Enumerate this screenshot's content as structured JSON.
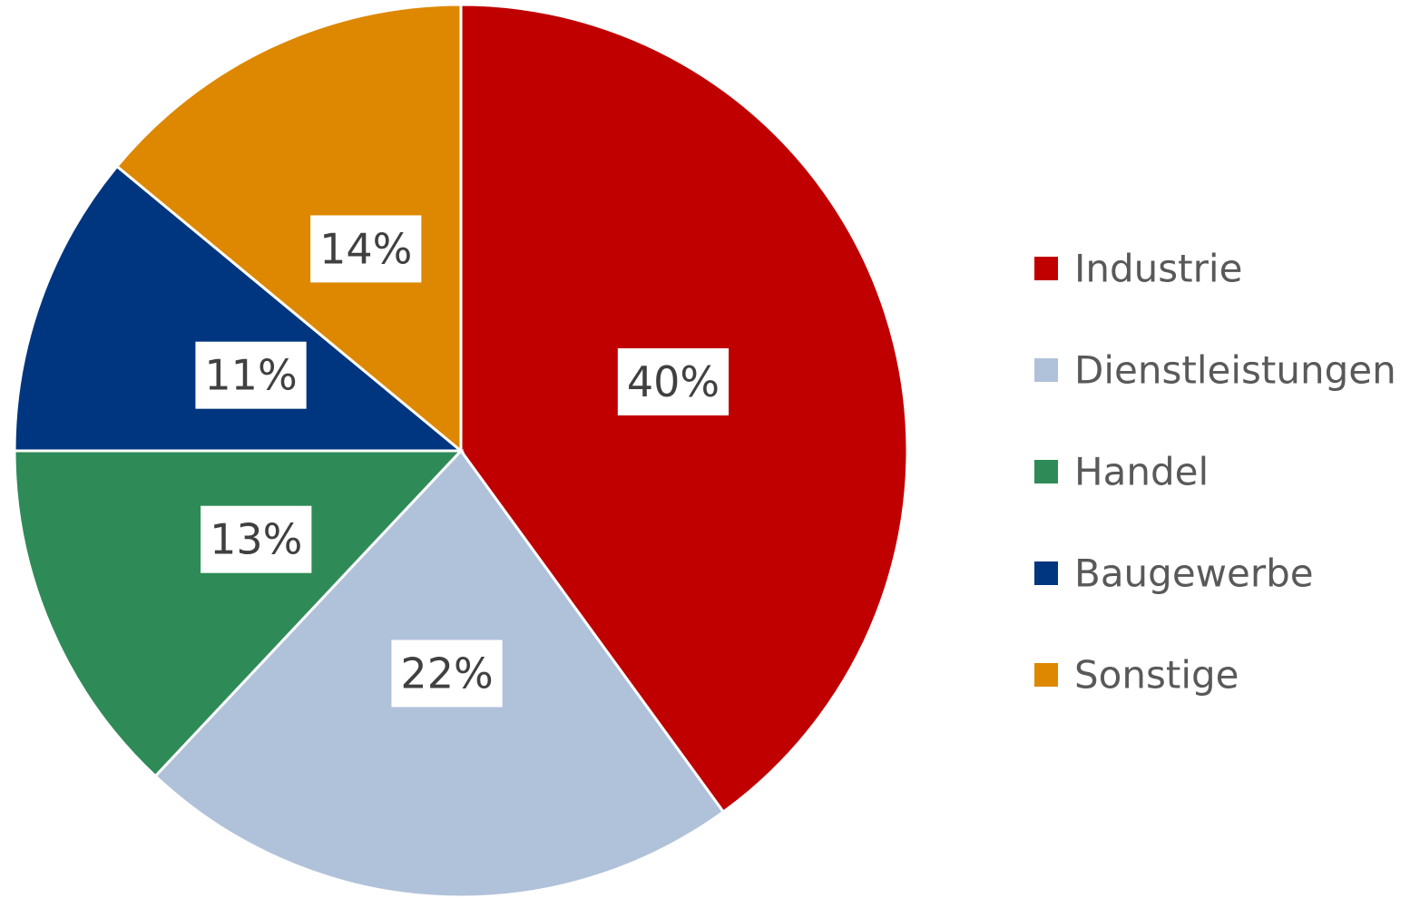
{
  "chart_data": {
    "type": "pie",
    "categories": [
      "Industrie",
      "Dienstleistungen",
      "Handel",
      "Baugewerbe",
      "Sonstige"
    ],
    "values": [
      40,
      22,
      13,
      11,
      14
    ],
    "value_labels": [
      "40%",
      "22%",
      "13%",
      "11%",
      "14%"
    ],
    "colors": [
      "#c00000",
      "#b0c1da",
      "#2e8b57",
      "#00367f",
      "#dd8800"
    ],
    "legend": "right"
  }
}
